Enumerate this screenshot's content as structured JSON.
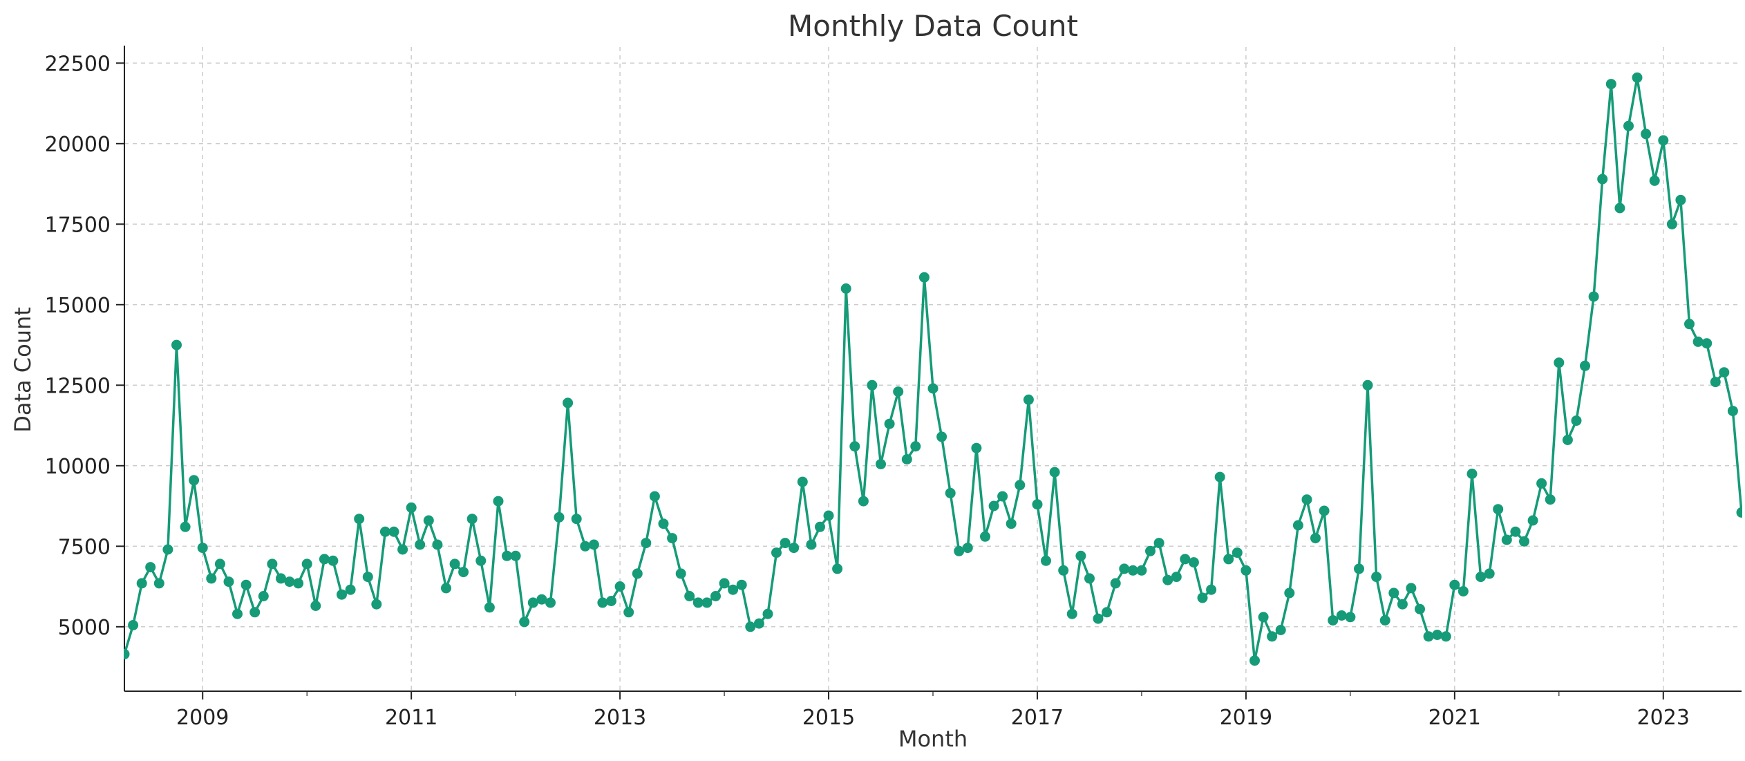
{
  "chart_data": {
    "type": "line",
    "title": "Monthly Data Count",
    "xlabel": "Month",
    "ylabel": "Data Count",
    "x_start": "2008-04",
    "x_end": "2023-10",
    "xlim": [
      "2008-04",
      "2023-10"
    ],
    "ylim": [
      3000,
      23000
    ],
    "xticks": [
      "2009",
      "2011",
      "2013",
      "2015",
      "2017",
      "2019",
      "2021",
      "2023"
    ],
    "yticks": [
      5000,
      7500,
      10000,
      12500,
      15000,
      17500,
      20000,
      22500
    ],
    "grid": true,
    "color": "#159b78",
    "series": [
      {
        "values": [
          4150,
          5050,
          6350,
          6850,
          6350,
          7400,
          13750,
          8100,
          9550,
          7450,
          6500,
          6950,
          6400,
          5400,
          6300,
          5450,
          5950,
          6950,
          6500,
          6400,
          6350,
          6950,
          5650,
          7100,
          7050,
          6000,
          6150,
          8350,
          6550,
          5700,
          7950,
          7950,
          7400,
          8700,
          7550,
          8300,
          7550,
          6200,
          6950,
          6700,
          8350,
          7050,
          5600,
          8900,
          7200,
          7200,
          5150,
          5750,
          5850,
          5750,
          8400,
          11950,
          8350,
          7500,
          7550,
          5750,
          5800,
          6250,
          5450,
          6650,
          7600,
          9050,
          8200,
          7750,
          6650,
          5950,
          5750,
          5750,
          5950,
          6350,
          6150,
          6300,
          5000,
          5100,
          5400,
          7300,
          7600,
          7450,
          9500,
          7550,
          8100,
          8450,
          6800,
          15500,
          10600,
          8900,
          12500,
          10050,
          11300,
          12300,
          10200,
          10600,
          15850,
          12400,
          10900,
          9150,
          7350,
          7450,
          10550,
          7800,
          8750,
          9050,
          8200,
          9400,
          12050,
          8800,
          7050,
          9800,
          6750,
          5400,
          7200,
          6500,
          5250,
          5450,
          6350,
          6800,
          6750,
          6750,
          7350,
          7600,
          6450,
          6550,
          7100,
          7000,
          5900,
          6150,
          9650,
          7100,
          7300,
          6750,
          3950,
          5300,
          4700,
          4900,
          6050,
          8150,
          8950,
          7750,
          8600,
          5200,
          5350,
          5300,
          6800,
          12500,
          6550,
          5200,
          6050,
          5700,
          6200,
          5550,
          4700,
          4750,
          4700,
          6300,
          6100,
          9750,
          6550,
          6650,
          8650,
          7700,
          7950,
          7650,
          8300,
          9450,
          8950,
          13200,
          10800,
          11400,
          13100,
          15250,
          18900,
          21850,
          18000,
          20550,
          22050,
          20300,
          18850,
          20100,
          17500,
          18250,
          14400,
          13850,
          13800,
          12600,
          12900,
          11700,
          8550
        ]
      }
    ]
  }
}
